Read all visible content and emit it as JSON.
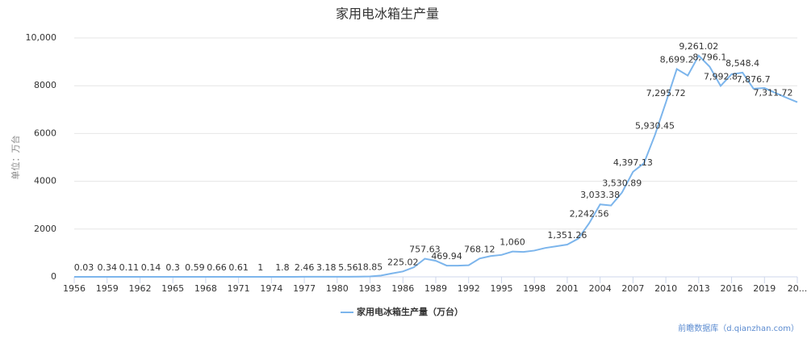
{
  "chart_data": {
    "type": "line",
    "title": "家用电冰箱生产量",
    "y_label": "单位：万台",
    "credits": "前瞻数据库（d.qianzhan.com）",
    "x": [
      1956,
      1957,
      1958,
      1959,
      1960,
      1961,
      1962,
      1963,
      1964,
      1965,
      1966,
      1967,
      1968,
      1969,
      1970,
      1971,
      1972,
      1973,
      1974,
      1975,
      1976,
      1977,
      1978,
      1979,
      1980,
      1981,
      1982,
      1983,
      1984,
      1985,
      1986,
      1987,
      1988,
      1989,
      1990,
      1991,
      1992,
      1993,
      1994,
      1995,
      1996,
      1997,
      1998,
      1999,
      2000,
      2001,
      2002,
      2003,
      2004,
      2005,
      2006,
      2007,
      2008,
      2009,
      2010,
      2011,
      2012,
      2013,
      2014,
      2015,
      2016,
      2017,
      2018,
      2019,
      2020,
      2021,
      2022
    ],
    "series": [
      {
        "name": "家用电冰箱生产量（万台）",
        "color": "#7cb5ec",
        "values": [
          0.03,
          0.1,
          0.2,
          0.34,
          0.3,
          0.11,
          0.12,
          0.14,
          0.2,
          0.3,
          0.4,
          0.59,
          0.6,
          0.66,
          0.6,
          0.61,
          0.8,
          1,
          1.5,
          1.8,
          2,
          2.46,
          2.8,
          3.18,
          4.9,
          5.56,
          10,
          18.85,
          54.7,
          144.8,
          225.02,
          401.3,
          757.63,
          670.8,
          469.94,
          470,
          485.8,
          768.12,
          870,
          918.5,
          1060,
          1044,
          1100,
          1210,
          1279,
          1351.26,
          1598.9,
          2242.56,
          3033.38,
          2987,
          3530.89,
          4397.13,
          4756.9,
          5930.45,
          7295.72,
          8699.2,
          8427,
          9261.02,
          8796.1,
          7992.8,
          8481.6,
          8548.4,
          7876.7,
          7904.3,
          7700,
          7500,
          7311.72
        ],
        "value_labels": [
          "0.03",
          null,
          null,
          "0.34",
          null,
          "0.11",
          null,
          "0.14",
          null,
          "0.3",
          null,
          "0.59",
          null,
          "0.66",
          null,
          "0.61",
          null,
          "1",
          null,
          "1.8",
          null,
          "2.46",
          null,
          "3.18",
          null,
          "5.56",
          null,
          "18.85",
          null,
          null,
          "225.02",
          null,
          "757.63",
          null,
          "469.94",
          null,
          null,
          "768.12",
          null,
          null,
          "1,060",
          null,
          null,
          null,
          null,
          "1,351.26",
          null,
          "2,242.56",
          "3,033.38",
          null,
          "3,530.89",
          "4,397.13",
          null,
          "5,930.45",
          "7,295.72",
          "8,699.2",
          null,
          "9,261.02",
          "8,796.1",
          "7,992.8",
          null,
          "8,548.4",
          "7,876.7",
          null,
          null,
          null,
          "7,311.72"
        ]
      }
    ],
    "xlim": [
      1956,
      2022
    ],
    "xticks": [
      1956,
      1959,
      1962,
      1965,
      1968,
      1971,
      1974,
      1977,
      1980,
      1983,
      1986,
      1989,
      1992,
      1995,
      1998,
      2001,
      2004,
      2007,
      2010,
      2013,
      2016,
      2019,
      {
        "value": 2022,
        "label": "20..."
      }
    ],
    "ylim": [
      0,
      10000
    ],
    "yticks": [
      0,
      2000,
      4000,
      6000,
      8000,
      {
        "value": 10000,
        "label": "10,000"
      }
    ],
    "grid": true
  }
}
